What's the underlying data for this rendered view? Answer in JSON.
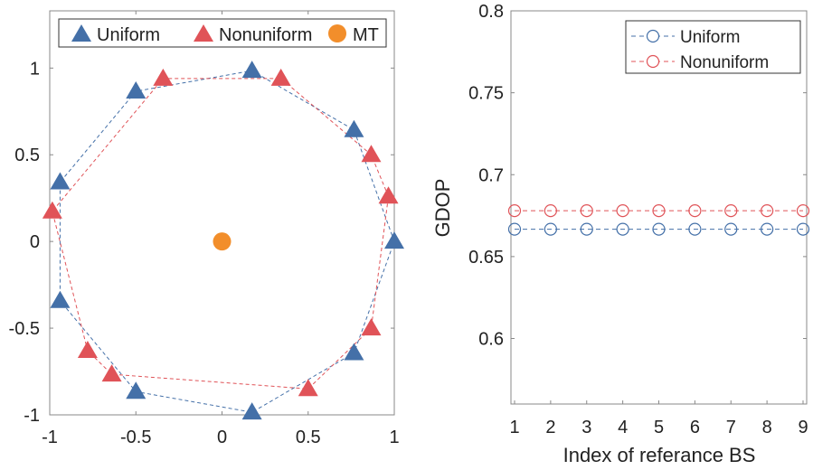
{
  "chart_data": [
    {
      "type": "scatter",
      "xlim": [
        -1,
        1
      ],
      "ylim": [
        -1,
        1.33
      ],
      "xticks": [
        "-1",
        "-0.5",
        "0",
        "0.5",
        "1"
      ],
      "yticks": [
        "-1",
        "-0.5",
        "0",
        "0.5",
        "1"
      ],
      "legend_placement": "top",
      "series": [
        {
          "name": "Uniform",
          "marker": "triangle",
          "color": "#4470a8",
          "x": [
            1,
            0.766,
            0.174,
            -0.5,
            -0.94,
            -0.94,
            -0.5,
            0.174,
            0.766
          ],
          "y": [
            0,
            0.643,
            0.985,
            0.866,
            0.342,
            -0.342,
            -0.866,
            -0.985,
            -0.643
          ]
        },
        {
          "name": "Nonuniform",
          "marker": "triangle",
          "color": "#e05358",
          "x": [
            0.966,
            0.866,
            0.342,
            -0.342,
            -0.985,
            -0.78,
            -0.64,
            0.5,
            0.866
          ],
          "y": [
            0.26,
            0.5,
            0.94,
            0.94,
            0.174,
            -0.63,
            -0.766,
            -0.85,
            -0.5
          ]
        },
        {
          "name": "MT",
          "marker": "circle",
          "color": "#f28e2b",
          "x": [
            0
          ],
          "y": [
            0
          ]
        }
      ]
    },
    {
      "type": "line",
      "xlabel": "Index of referance BS",
      "ylabel": "GDOP",
      "xlim": [
        1,
        9
      ],
      "ylim": [
        0.56,
        0.8
      ],
      "xticks": [
        "1",
        "2",
        "3",
        "4",
        "5",
        "6",
        "7",
        "8",
        "9"
      ],
      "yticks": [
        "0.6",
        "0.65",
        "0.7",
        "0.75",
        "0.8"
      ],
      "legend_placement": "top-right",
      "x": [
        1,
        2,
        3,
        4,
        5,
        6,
        7,
        8,
        9
      ],
      "series": [
        {
          "name": "Uniform",
          "color": "#4470a8",
          "values": [
            0.6667,
            0.6667,
            0.6667,
            0.6667,
            0.6667,
            0.6667,
            0.6667,
            0.6667,
            0.6667
          ]
        },
        {
          "name": "Nonuniform",
          "color": "#e05358",
          "values": [
            0.678,
            0.678,
            0.678,
            0.678,
            0.678,
            0.678,
            0.678,
            0.678,
            0.678
          ]
        }
      ]
    }
  ]
}
